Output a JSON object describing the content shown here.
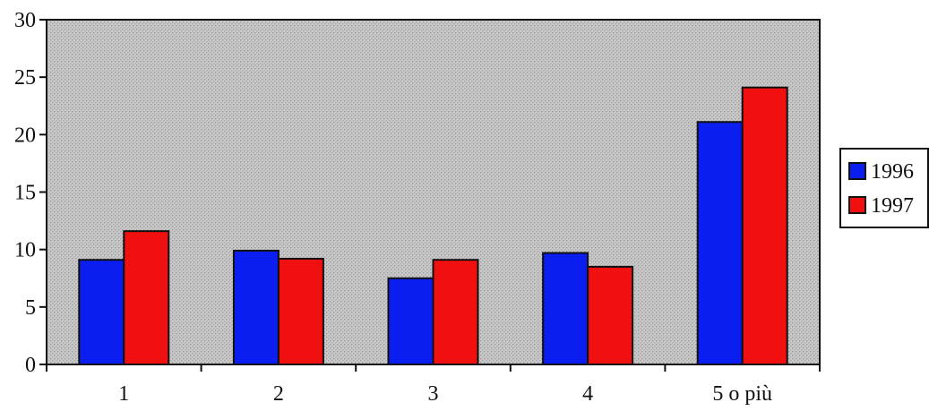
{
  "chart_data": {
    "type": "bar",
    "title": "",
    "xlabel": "",
    "ylabel": "",
    "categories": [
      "1",
      "2",
      "3",
      "4",
      "5 o più"
    ],
    "series": [
      {
        "name": "1996",
        "values": [
          9.1,
          9.9,
          7.5,
          9.7,
          21.1
        ],
        "color": "#0a1ef0"
      },
      {
        "name": "1997",
        "values": [
          11.6,
          9.2,
          9.1,
          8.5,
          24.1
        ],
        "color": "#f01010"
      }
    ],
    "ylim": [
      0,
      30
    ],
    "yticks": [
      "0",
      "5",
      "10",
      "15",
      "20",
      "25",
      "30"
    ],
    "grid": false,
    "legend_position": "right",
    "plot_background": "#c4c4c4"
  }
}
